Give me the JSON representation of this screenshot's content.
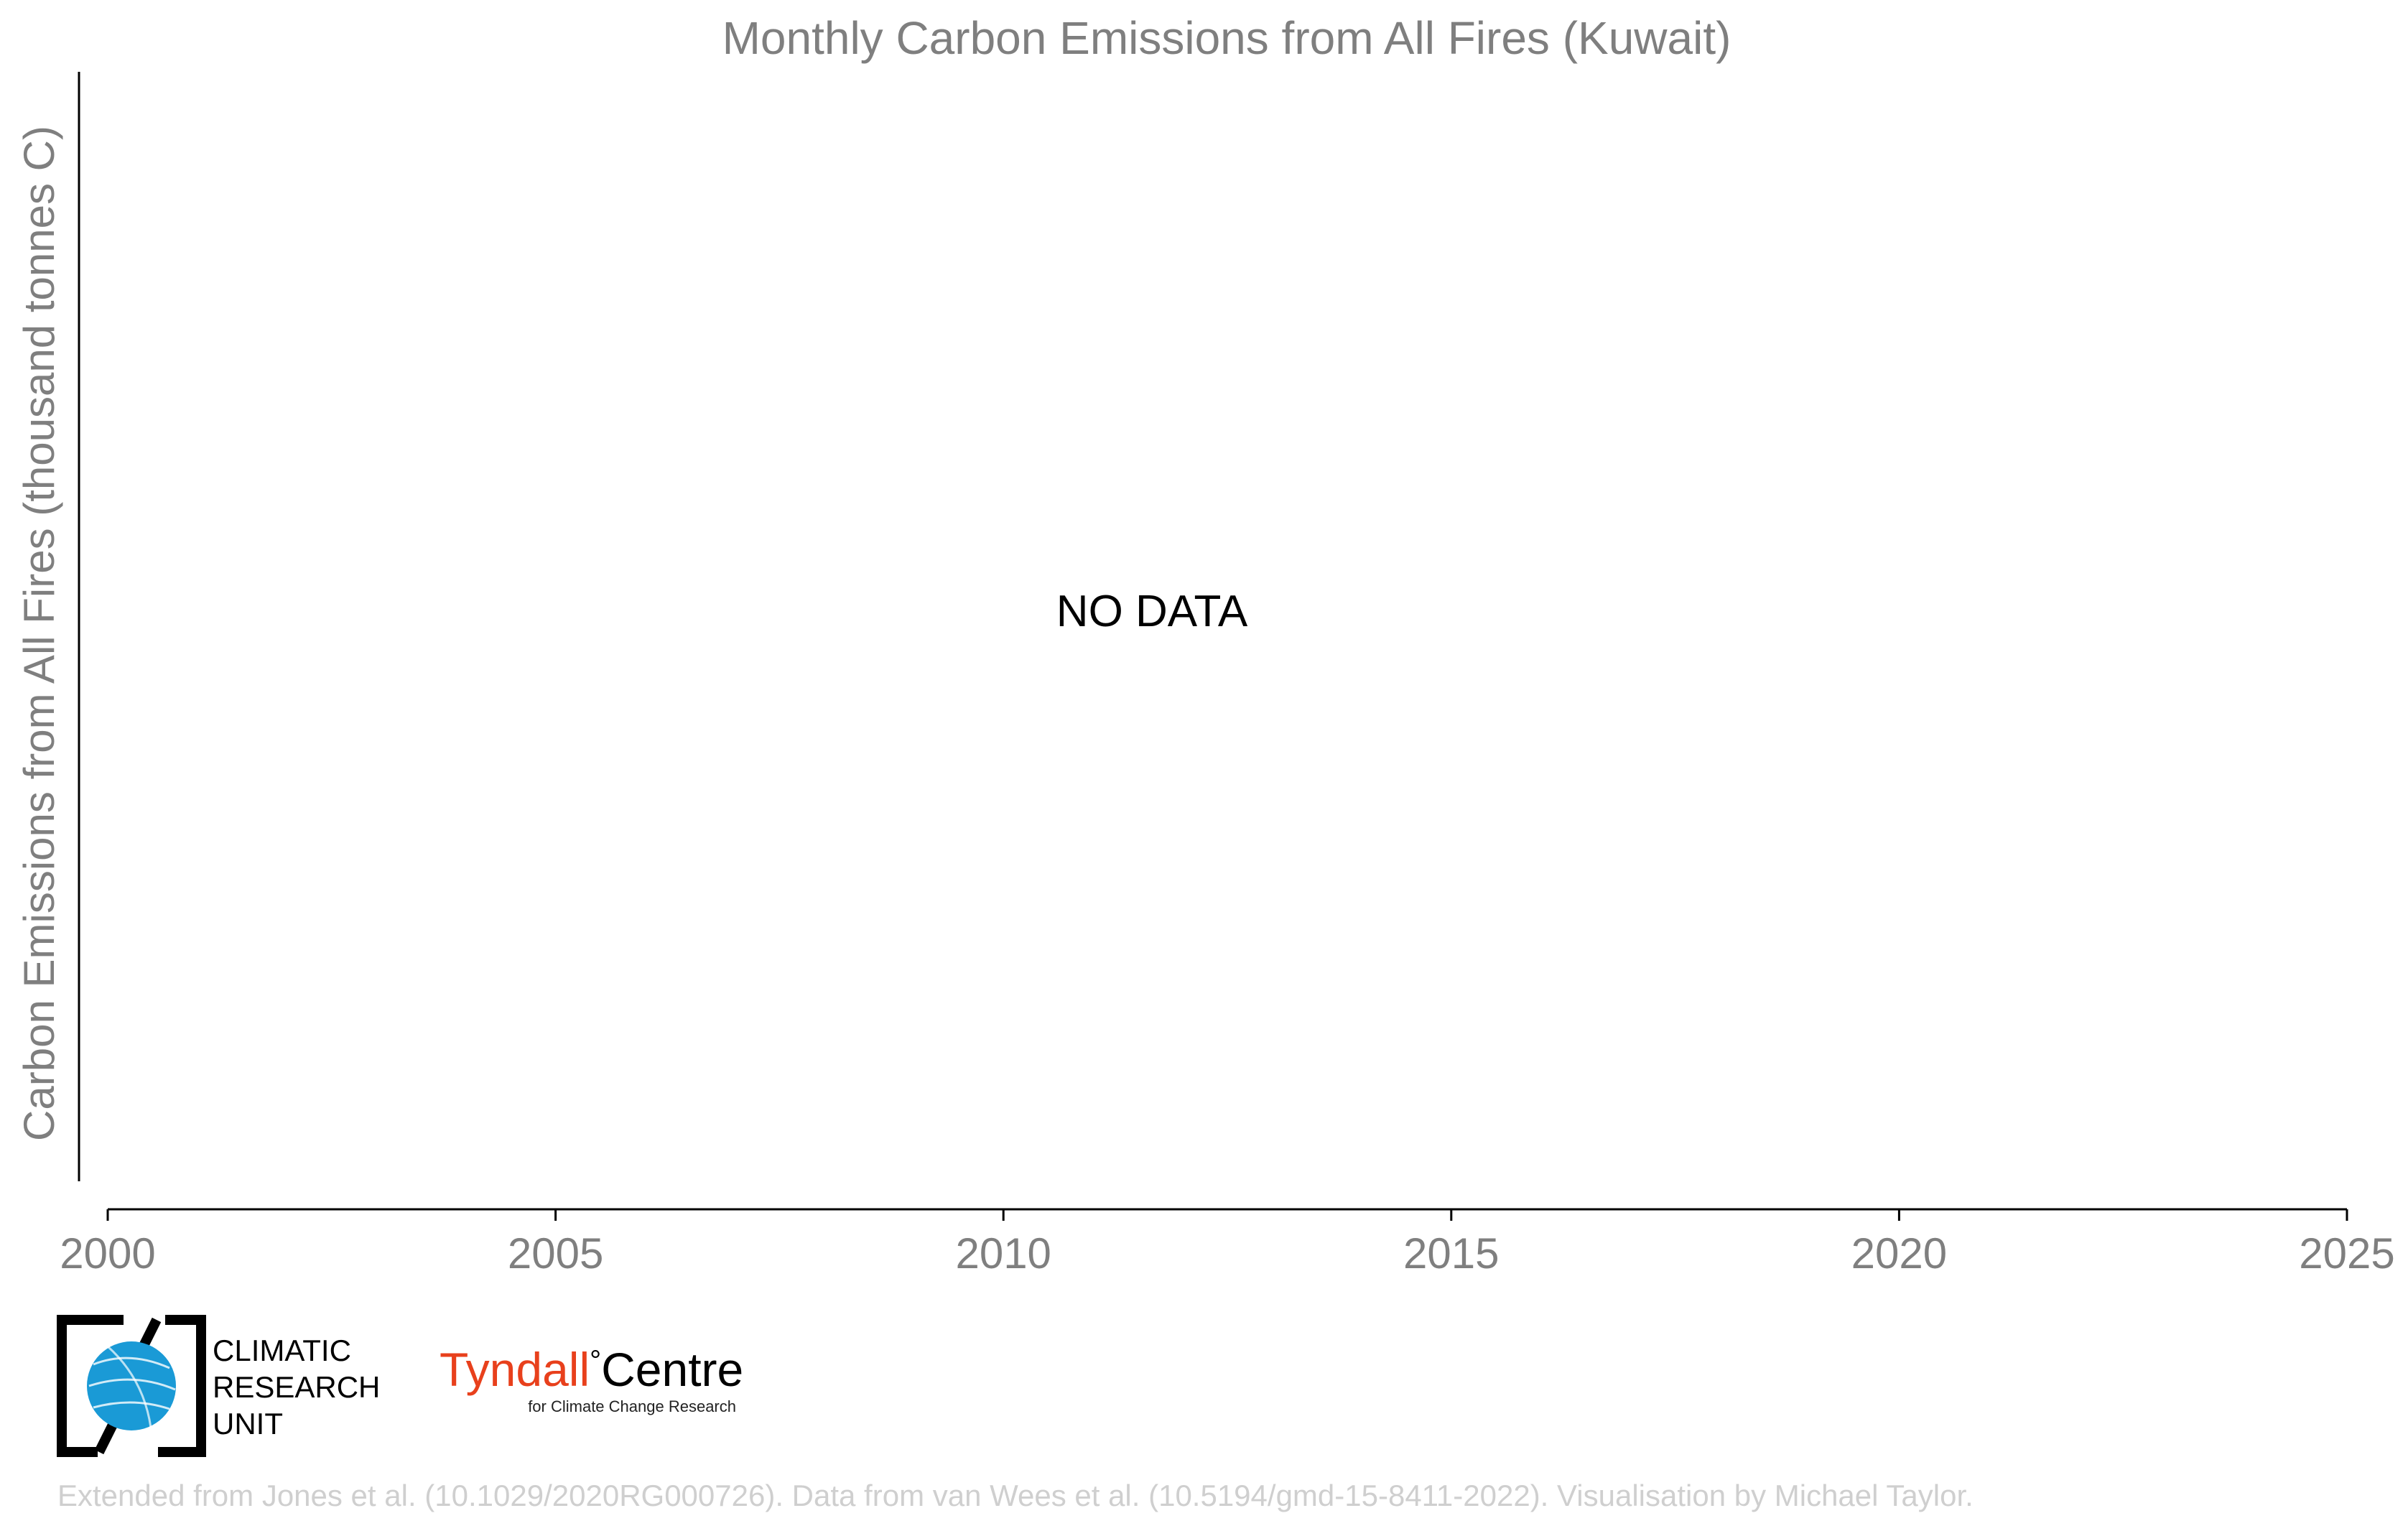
{
  "chart_data": {
    "type": "line",
    "title": "Monthly Carbon Emissions from All Fires (Kuwait)",
    "ylabel": "Carbon Emissions from All Fires (thousand tonnes C)",
    "xlabel": "",
    "xlim": [
      2000,
      2025
    ],
    "x_ticks": [
      "2000",
      "2005",
      "2010",
      "2015",
      "2020",
      "2025"
    ],
    "series": [],
    "annotation": "NO DATA",
    "grid": false
  },
  "logos": {
    "cru": {
      "line1": "CLIMATIC",
      "line2": "RESEARCH",
      "line3": "UNIT",
      "icon": "globe-icon"
    },
    "tyndall": {
      "name_part1": "Tyndall",
      "degree": "°",
      "name_part2": "Centre",
      "subtitle": "for Climate Change Research",
      "accent_color": "#e8401c"
    }
  },
  "credit": "Extended from Jones et al. (10.1029/2020RG000726). Data from van Wees et al. (10.5194/gmd-15-8411-2022). Visualisation by Michael Taylor."
}
